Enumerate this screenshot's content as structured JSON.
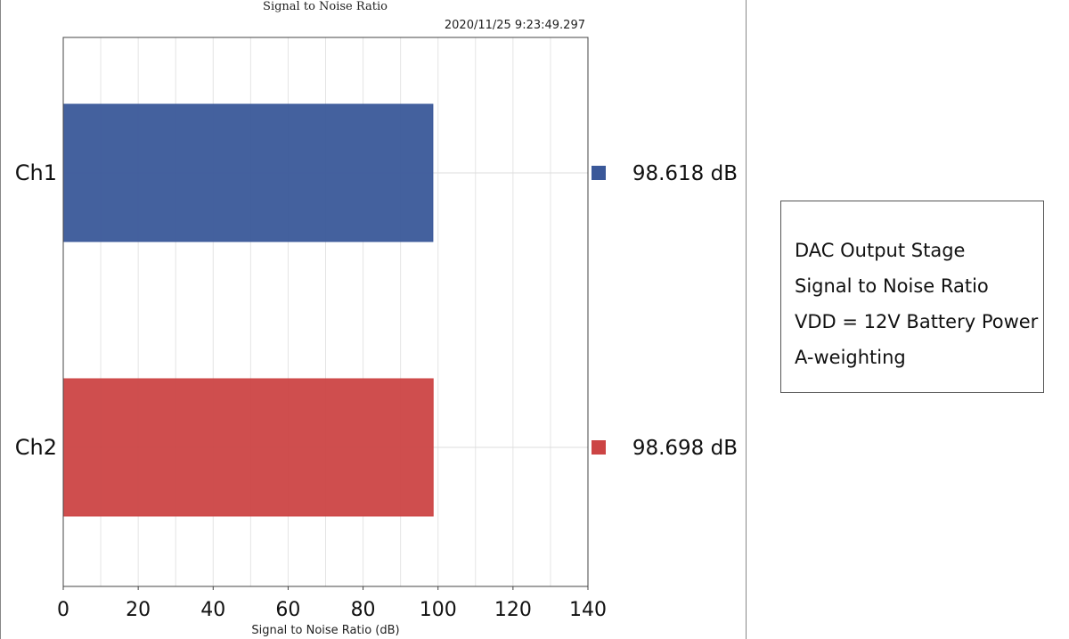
{
  "chart_data": {
    "type": "bar",
    "orientation": "horizontal",
    "title": "Signal to Noise Ratio",
    "timestamp": "2020/11/25 9:23:49.297",
    "xlabel": "Signal to Noise Ratio (dB)",
    "xlim": [
      0,
      140
    ],
    "xticks": [
      "0",
      "20",
      "40",
      "60",
      "80",
      "100",
      "120",
      "140"
    ],
    "grid": true,
    "categories": [
      "Ch1",
      "Ch2"
    ],
    "values": [
      98.618,
      98.698
    ],
    "colors": [
      "#3a5899",
      "#cc4444"
    ],
    "legend_position": "right",
    "value_labels": [
      "98.618 dB",
      "98.698 dB"
    ]
  },
  "notes": {
    "lines": [
      "DAC Output Stage",
      "Signal to Noise Ratio",
      "VDD = 12V Battery Power",
      "A-weighting"
    ]
  }
}
